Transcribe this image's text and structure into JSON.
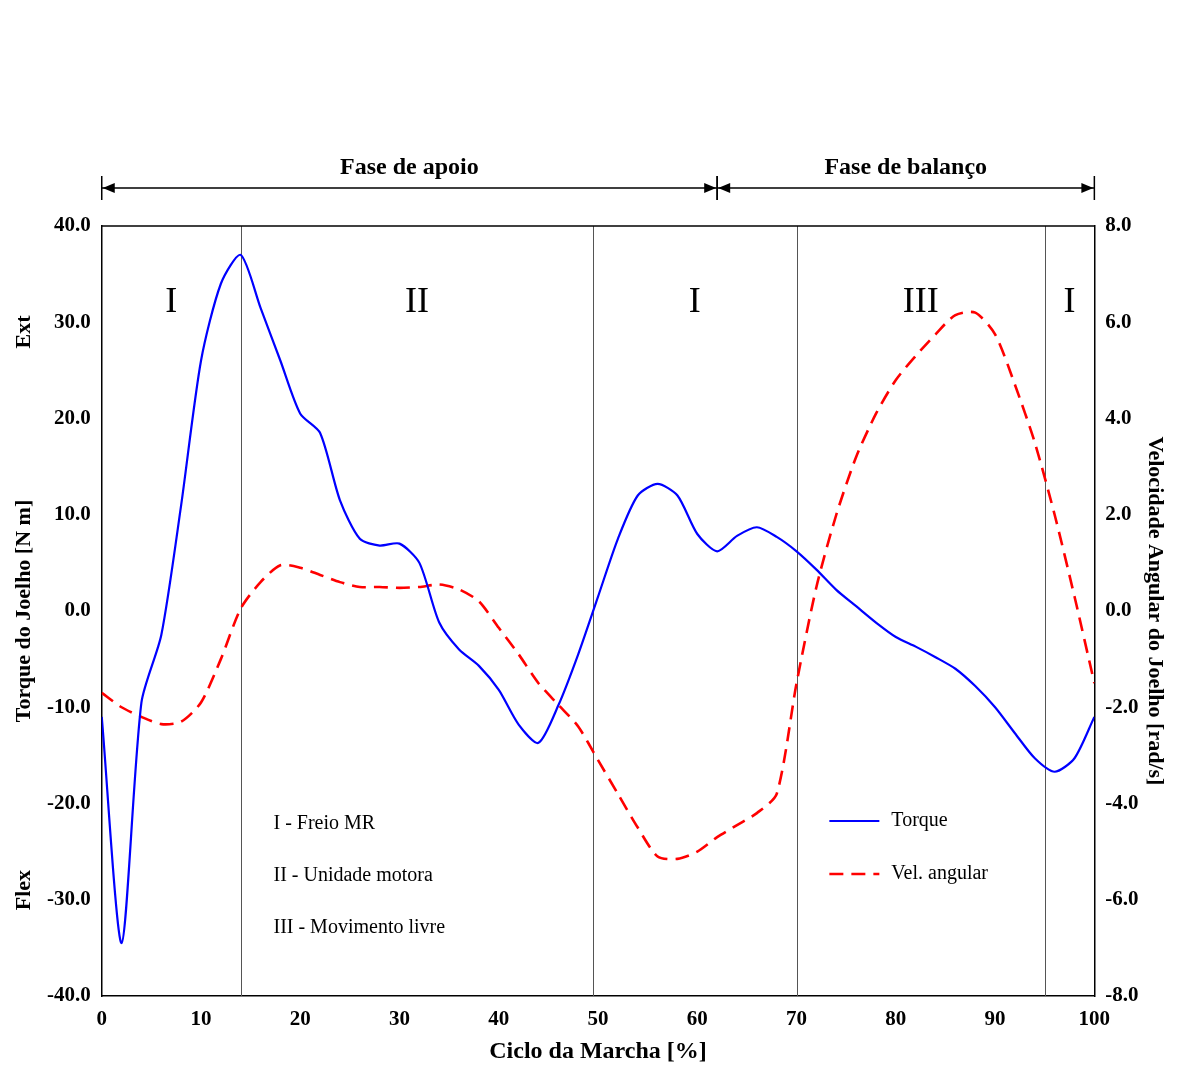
{
  "chart_data": {
    "type": "line",
    "xlabel": "Ciclo da Marcha [%]",
    "ylabel": "Torque do Joelho [N m]",
    "y2label": "Velocidade Angular do Joelho [rad/s]",
    "y_direction_labels": {
      "positive": "Ext",
      "negative": "Flex"
    },
    "x": [
      0,
      2,
      4,
      6,
      8,
      10,
      12,
      14,
      16,
      18,
      20,
      22,
      24,
      26,
      28,
      30,
      32,
      34,
      36,
      38,
      40,
      42,
      44,
      46,
      48,
      50,
      52,
      54,
      56,
      58,
      60,
      62,
      64,
      66,
      68,
      70,
      72,
      74,
      76,
      78,
      80,
      82,
      84,
      86,
      88,
      90,
      92,
      94,
      96,
      98,
      100
    ],
    "xlim": [
      0,
      100
    ],
    "xticks": [
      0,
      10,
      20,
      30,
      40,
      50,
      60,
      70,
      80,
      90,
      100
    ],
    "ylim": [
      -40,
      40
    ],
    "yticks": [
      {
        "value": -40,
        "label": "-40.0"
      },
      {
        "value": -30,
        "label": "-30.0"
      },
      {
        "value": -20,
        "label": "-20.0"
      },
      {
        "value": -10,
        "label": "-10.0"
      },
      {
        "value": 0,
        "label": "0.0"
      },
      {
        "value": 10,
        "label": "10.0"
      },
      {
        "value": 20,
        "label": "20.0"
      },
      {
        "value": 30,
        "label": "30.0"
      },
      {
        "value": 40,
        "label": "40.0"
      }
    ],
    "y2lim": [
      -8,
      8
    ],
    "y2ticks": [
      {
        "value": -8,
        "label": "-8.0"
      },
      {
        "value": -6,
        "label": "-6.0"
      },
      {
        "value": -4,
        "label": "-4.0"
      },
      {
        "value": -2,
        "label": "-2.0"
      },
      {
        "value": 0,
        "label": "0.0"
      },
      {
        "value": 2,
        "label": "2.0"
      },
      {
        "value": 4,
        "label": "4.0"
      },
      {
        "value": 6,
        "label": "6.0"
      },
      {
        "value": 8,
        "label": "8.0"
      }
    ],
    "grid": false,
    "legend": "lower right",
    "series": [
      {
        "name": "Torque",
        "color": "#0000ff",
        "line_style": "solid",
        "values": [
          -11,
          -34.5,
          -9.5,
          -2.5,
          11,
          26,
          34,
          37,
          31.5,
          26,
          20.5,
          18.5,
          11.5,
          7.5,
          6.8,
          7,
          5,
          -1.2,
          -4,
          -5.7,
          -8.2,
          -11.8,
          -13.7,
          -9.8,
          -4.5,
          1.5,
          7.5,
          12,
          13.2,
          12,
          8,
          6.2,
          7.8,
          8.7,
          7.7,
          6.2,
          4.3,
          2.2,
          0.5,
          -1.2,
          -2.7,
          -3.7,
          -4.8,
          -6,
          -7.8,
          -10,
          -12.7,
          -15.3,
          -16.7,
          -15.3,
          -11
        ]
      },
      {
        "name": "Vel. angular",
        "color": "#ff0000",
        "line_style": "dashed",
        "axis": "y2",
        "values": [
          -1.7,
          -2.0,
          -2.2,
          -2.35,
          -2.3,
          -1.9,
          -1.0,
          0.05,
          0.6,
          0.95,
          0.9,
          0.75,
          0.6,
          0.5,
          0.5,
          0.48,
          0.5,
          0.55,
          0.45,
          0.2,
          -0.35,
          -0.9,
          -1.5,
          -1.95,
          -2.4,
          -3.1,
          -3.8,
          -4.5,
          -5.1,
          -5.15,
          -5.0,
          -4.7,
          -4.45,
          -4.2,
          -3.8,
          -1.5,
          0.5,
          2.0,
          3.2,
          4.1,
          4.8,
          5.3,
          5.75,
          6.15,
          6.2,
          5.75,
          4.7,
          3.5,
          2.0,
          0.3,
          -1.5
        ]
      }
    ],
    "phases": [
      {
        "start": 0,
        "end": 62,
        "label": "Fase de apoio"
      },
      {
        "start": 62,
        "end": 100,
        "label": "Fase de balanço"
      }
    ],
    "regions": [
      {
        "start": 0,
        "end": 14,
        "label": "I"
      },
      {
        "start": 14,
        "end": 49.5,
        "label": "II"
      },
      {
        "start": 49.5,
        "end": 70,
        "label": "I"
      },
      {
        "start": 70,
        "end": 95,
        "label": "III"
      },
      {
        "start": 95,
        "end": 100,
        "label": "I"
      }
    ],
    "key_text": [
      "I - Freio MR",
      "II - Unidade motora",
      "III - Movimento livre"
    ]
  }
}
